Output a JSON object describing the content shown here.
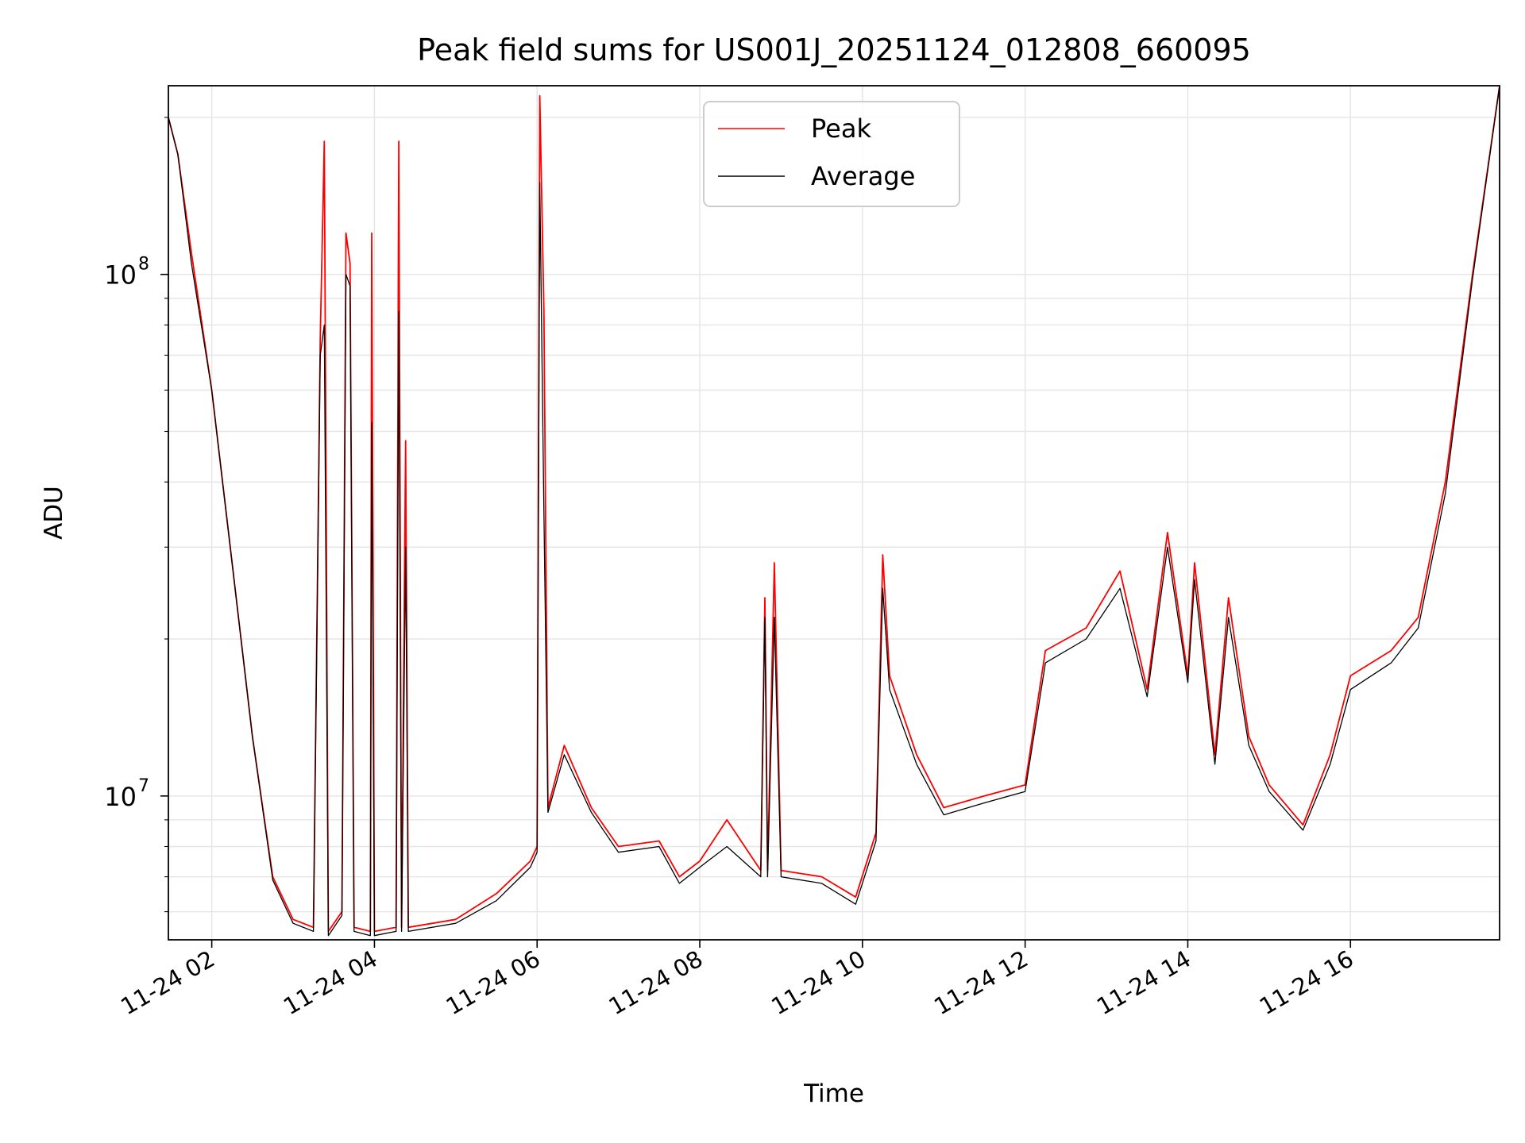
{
  "chart_data": {
    "type": "line",
    "title": "Peak field sums for US001J_20251124_012808_660095",
    "xlabel": "Time",
    "ylabel": "ADU",
    "yscale": "log",
    "xlim": [
      "2025-11-24 01:28",
      "2025-11-24 17:50"
    ],
    "ylim": [
      5300000,
      230000000
    ],
    "grid": true,
    "legend_position": "top-center",
    "x_ticks": [
      {
        "t": "2025-11-24 02:00",
        "label": "11-24 02"
      },
      {
        "t": "2025-11-24 04:00",
        "label": "11-24 04"
      },
      {
        "t": "2025-11-24 06:00",
        "label": "11-24 06"
      },
      {
        "t": "2025-11-24 08:00",
        "label": "11-24 08"
      },
      {
        "t": "2025-11-24 10:00",
        "label": "11-24 10"
      },
      {
        "t": "2025-11-24 12:00",
        "label": "11-24 12"
      },
      {
        "t": "2025-11-24 14:00",
        "label": "11-24 14"
      },
      {
        "t": "2025-11-24 16:00",
        "label": "11-24 16"
      }
    ],
    "y_ticks": [
      {
        "value": 10000000,
        "base": "10",
        "exp": "7"
      },
      {
        "value": 100000000,
        "base": "10",
        "exp": "8"
      }
    ],
    "series": [
      {
        "name": "Peak",
        "color": "#ff0000",
        "points": [
          [
            "2025-11-24 01:28",
            200000000
          ],
          [
            "2025-11-24 01:35",
            170000000
          ],
          [
            "2025-11-24 01:45",
            110000000
          ],
          [
            "2025-11-24 02:00",
            60000000
          ],
          [
            "2025-11-24 02:15",
            28000000
          ],
          [
            "2025-11-24 02:30",
            13000000
          ],
          [
            "2025-11-24 02:45",
            7000000
          ],
          [
            "2025-11-24 03:00",
            5800000
          ],
          [
            "2025-11-24 03:15",
            5600000
          ],
          [
            "2025-11-24 03:20",
            75000000
          ],
          [
            "2025-11-24 03:23",
            180000000
          ],
          [
            "2025-11-24 03:26",
            5500000
          ],
          [
            "2025-11-24 03:36",
            6000000
          ],
          [
            "2025-11-24 03:39",
            120000000
          ],
          [
            "2025-11-24 03:42",
            105000000
          ],
          [
            "2025-11-24 03:45",
            5600000
          ],
          [
            "2025-11-24 03:57",
            5500000
          ],
          [
            "2025-11-24 03:58",
            120000000
          ],
          [
            "2025-11-24 04:00",
            5500000
          ],
          [
            "2025-11-24 04:16",
            5600000
          ],
          [
            "2025-11-24 04:18",
            180000000
          ],
          [
            "2025-11-24 04:20",
            5600000
          ],
          [
            "2025-11-24 04:23",
            48000000
          ],
          [
            "2025-11-24 04:25",
            5600000
          ],
          [
            "2025-11-24 05:00",
            5800000
          ],
          [
            "2025-11-24 05:30",
            6500000
          ],
          [
            "2025-11-24 05:55",
            7500000
          ],
          [
            "2025-11-24 06:00",
            8000000
          ],
          [
            "2025-11-24 06:02",
            220000000
          ],
          [
            "2025-11-24 06:05",
            85000000
          ],
          [
            "2025-11-24 06:08",
            9500000
          ],
          [
            "2025-11-24 06:20",
            12500000
          ],
          [
            "2025-11-24 06:40",
            9500000
          ],
          [
            "2025-11-24 07:00",
            8000000
          ],
          [
            "2025-11-24 07:30",
            8200000
          ],
          [
            "2025-11-24 07:45",
            7000000
          ],
          [
            "2025-11-24 08:00",
            7500000
          ],
          [
            "2025-11-24 08:20",
            9000000
          ],
          [
            "2025-11-24 08:45",
            7200000
          ],
          [
            "2025-11-24 08:48",
            24000000
          ],
          [
            "2025-11-24 08:50",
            7200000
          ],
          [
            "2025-11-24 08:55",
            28000000
          ],
          [
            "2025-11-24 09:00",
            7200000
          ],
          [
            "2025-11-24 09:30",
            7000000
          ],
          [
            "2025-11-24 09:55",
            6400000
          ],
          [
            "2025-11-24 10:10",
            8500000
          ],
          [
            "2025-11-24 10:15",
            29000000
          ],
          [
            "2025-11-24 10:20",
            17000000
          ],
          [
            "2025-11-24 10:40",
            12000000
          ],
          [
            "2025-11-24 11:00",
            9500000
          ],
          [
            "2025-11-24 11:30",
            10000000
          ],
          [
            "2025-11-24 12:00",
            10500000
          ],
          [
            "2025-11-24 12:15",
            19000000
          ],
          [
            "2025-11-24 12:45",
            21000000
          ],
          [
            "2025-11-24 13:10",
            27000000
          ],
          [
            "2025-11-24 13:30",
            16000000
          ],
          [
            "2025-11-24 13:45",
            32000000
          ],
          [
            "2025-11-24 14:00",
            17000000
          ],
          [
            "2025-11-24 14:05",
            28000000
          ],
          [
            "2025-11-24 14:20",
            12000000
          ],
          [
            "2025-11-24 14:30",
            24000000
          ],
          [
            "2025-11-24 14:45",
            13000000
          ],
          [
            "2025-11-24 15:00",
            10500000
          ],
          [
            "2025-11-24 15:25",
            8800000
          ],
          [
            "2025-11-24 15:45",
            12000000
          ],
          [
            "2025-11-24 16:00",
            17000000
          ],
          [
            "2025-11-24 16:30",
            19000000
          ],
          [
            "2025-11-24 16:50",
            22000000
          ],
          [
            "2025-11-24 17:10",
            40000000
          ],
          [
            "2025-11-24 17:30",
            100000000
          ],
          [
            "2025-11-24 17:50",
            230000000
          ]
        ]
      },
      {
        "name": "Average",
        "color": "#000000",
        "points": [
          [
            "2025-11-24 01:28",
            200000000
          ],
          [
            "2025-11-24 01:35",
            170000000
          ],
          [
            "2025-11-24 01:45",
            105000000
          ],
          [
            "2025-11-24 02:00",
            60000000
          ],
          [
            "2025-11-24 02:15",
            28000000
          ],
          [
            "2025-11-24 02:30",
            13000000
          ],
          [
            "2025-11-24 02:45",
            6900000
          ],
          [
            "2025-11-24 03:00",
            5700000
          ],
          [
            "2025-11-24 03:15",
            5500000
          ],
          [
            "2025-11-24 03:20",
            70000000
          ],
          [
            "2025-11-24 03:23",
            80000000
          ],
          [
            "2025-11-24 03:26",
            5400000
          ],
          [
            "2025-11-24 03:36",
            5900000
          ],
          [
            "2025-11-24 03:39",
            100000000
          ],
          [
            "2025-11-24 03:42",
            95000000
          ],
          [
            "2025-11-24 03:45",
            5500000
          ],
          [
            "2025-11-24 03:57",
            5400000
          ],
          [
            "2025-11-24 03:58",
            52000000
          ],
          [
            "2025-11-24 04:00",
            5400000
          ],
          [
            "2025-11-24 04:16",
            5500000
          ],
          [
            "2025-11-24 04:18",
            85000000
          ],
          [
            "2025-11-24 04:20",
            5500000
          ],
          [
            "2025-11-24 04:23",
            30000000
          ],
          [
            "2025-11-24 04:25",
            5500000
          ],
          [
            "2025-11-24 05:00",
            5700000
          ],
          [
            "2025-11-24 05:30",
            6300000
          ],
          [
            "2025-11-24 05:55",
            7300000
          ],
          [
            "2025-11-24 06:00",
            7800000
          ],
          [
            "2025-11-24 06:02",
            150000000
          ],
          [
            "2025-11-24 06:05",
            35000000
          ],
          [
            "2025-11-24 06:08",
            9300000
          ],
          [
            "2025-11-24 06:20",
            12000000
          ],
          [
            "2025-11-24 06:40",
            9300000
          ],
          [
            "2025-11-24 07:00",
            7800000
          ],
          [
            "2025-11-24 07:30",
            8000000
          ],
          [
            "2025-11-24 07:45",
            6800000
          ],
          [
            "2025-11-24 08:00",
            7300000
          ],
          [
            "2025-11-24 08:20",
            8000000
          ],
          [
            "2025-11-24 08:45",
            7000000
          ],
          [
            "2025-11-24 08:48",
            22000000
          ],
          [
            "2025-11-24 08:50",
            7000000
          ],
          [
            "2025-11-24 08:55",
            22000000
          ],
          [
            "2025-11-24 09:00",
            7000000
          ],
          [
            "2025-11-24 09:30",
            6800000
          ],
          [
            "2025-11-24 09:55",
            6200000
          ],
          [
            "2025-11-24 10:10",
            8200000
          ],
          [
            "2025-11-24 10:15",
            25000000
          ],
          [
            "2025-11-24 10:20",
            16000000
          ],
          [
            "2025-11-24 10:40",
            11500000
          ],
          [
            "2025-11-24 11:00",
            9200000
          ],
          [
            "2025-11-24 11:30",
            9700000
          ],
          [
            "2025-11-24 12:00",
            10200000
          ],
          [
            "2025-11-24 12:15",
            18000000
          ],
          [
            "2025-11-24 12:45",
            20000000
          ],
          [
            "2025-11-24 13:10",
            25000000
          ],
          [
            "2025-11-24 13:30",
            15500000
          ],
          [
            "2025-11-24 13:45",
            30000000
          ],
          [
            "2025-11-24 14:00",
            16500000
          ],
          [
            "2025-11-24 14:05",
            26000000
          ],
          [
            "2025-11-24 14:20",
            11500000
          ],
          [
            "2025-11-24 14:30",
            22000000
          ],
          [
            "2025-11-24 14:45",
            12500000
          ],
          [
            "2025-11-24 15:00",
            10200000
          ],
          [
            "2025-11-24 15:25",
            8600000
          ],
          [
            "2025-11-24 15:45",
            11500000
          ],
          [
            "2025-11-24 16:00",
            16000000
          ],
          [
            "2025-11-24 16:30",
            18000000
          ],
          [
            "2025-11-24 16:50",
            21000000
          ],
          [
            "2025-11-24 17:10",
            38000000
          ],
          [
            "2025-11-24 17:30",
            98000000
          ],
          [
            "2025-11-24 17:50",
            230000000
          ]
        ]
      }
    ]
  }
}
